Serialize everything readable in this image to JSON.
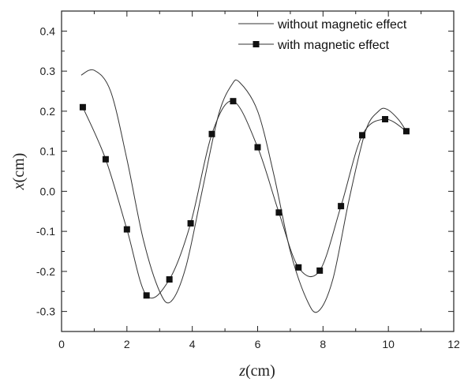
{
  "chart_data": {
    "type": "line",
    "title": "",
    "xlabel": {
      "var": "z",
      "unit": "(cm)"
    },
    "ylabel": {
      "var": "x",
      "unit": "(cm)"
    },
    "xlim": [
      0,
      12
    ],
    "ylim": [
      -0.35,
      0.45
    ],
    "xticks": [
      "0",
      "2",
      "4",
      "6",
      "8",
      "10",
      "12"
    ],
    "yticks": [
      "-0.3",
      "-0.2",
      "-0.1",
      "0.0",
      "0.1",
      "0.2",
      "0.3",
      "0.4"
    ],
    "grid": false,
    "legend_position": "top-right",
    "series": [
      {
        "name": "without magnetic effect",
        "marker": "none",
        "color": "#333333",
        "x": [
          0.6,
          1.0,
          1.5,
          2.0,
          2.5,
          3.0,
          3.35,
          3.8,
          4.3,
          4.8,
          5.2,
          5.45,
          6.0,
          6.5,
          7.0,
          7.5,
          7.85,
          8.3,
          8.8,
          9.3,
          9.7,
          9.95,
          10.3,
          10.55
        ],
        "y": [
          0.29,
          0.302,
          0.25,
          0.08,
          -0.12,
          -0.25,
          -0.275,
          -0.19,
          0.0,
          0.19,
          0.265,
          0.272,
          0.2,
          0.04,
          -0.15,
          -0.27,
          -0.3,
          -0.22,
          -0.02,
          0.15,
          0.2,
          0.205,
          0.18,
          0.15
        ]
      },
      {
        "name": "with magnetic effect",
        "marker": "square",
        "color": "#333333",
        "x": [
          0.65,
          1.35,
          2.0,
          2.6,
          3.3,
          3.95,
          4.6,
          5.25,
          6.0,
          6.65,
          7.25,
          7.9,
          8.55,
          9.2,
          9.9,
          10.55
        ],
        "y": [
          0.21,
          0.08,
          -0.095,
          -0.26,
          -0.22,
          -0.08,
          0.143,
          0.225,
          0.11,
          -0.053,
          -0.19,
          -0.198,
          -0.037,
          0.14,
          0.18,
          0.15
        ]
      }
    ]
  }
}
